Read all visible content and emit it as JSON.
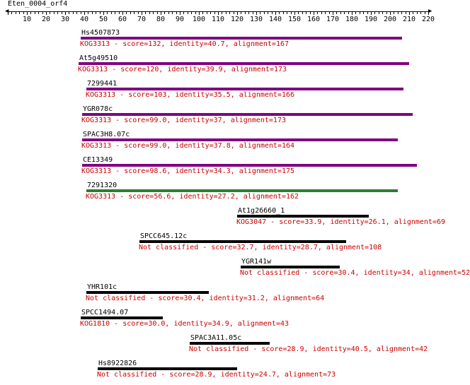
{
  "header": {
    "title": "Eten_0004_orf4"
  },
  "ruler": {
    "min": 0,
    "max": 220,
    "minor_step": 2,
    "labels": [
      10,
      20,
      30,
      40,
      50,
      60,
      70,
      80,
      90,
      100,
      110,
      120,
      130,
      140,
      150,
      160,
      170,
      180,
      190,
      200,
      210,
      220
    ]
  },
  "colors": {
    "kog_bar_purple": "#800080",
    "kog_bar_green": "#2e7d32",
    "other_bar": "#000000",
    "description_text": "#cc0000"
  },
  "hits": [
    {
      "name": "Hs4507873",
      "description": "KOG3313 - score=132, identity=40.7, alignment=167",
      "start": 38,
      "end": 206,
      "color": "#800080"
    },
    {
      "name": "At5g49510",
      "description": "KOG3313 - score=120, identity=39.9, alignment=173",
      "start": 37,
      "end": 210,
      "color": "#800080"
    },
    {
      "name": "7299441",
      "description": "KOG3313 - score=103, identity=35.5, alignment=166",
      "start": 41,
      "end": 207,
      "color": "#800080"
    },
    {
      "name": "YGR078c",
      "description": "KOG3313 - score=99.0, identity=37, alignment=173",
      "start": 39,
      "end": 212,
      "color": "#800080"
    },
    {
      "name": "SPAC3H8.07c",
      "description": "KOG3313 - score=99.0, identity=37.8, alignment=164",
      "start": 39,
      "end": 204,
      "color": "#800080"
    },
    {
      "name": "CE13349",
      "description": "KOG3313 - score=98.6, identity=34.3, alignment=175",
      "start": 39,
      "end": 214,
      "color": "#800080"
    },
    {
      "name": "7291320",
      "description": "KOG3313 - score=56.6, identity=27.2, alignment=162",
      "start": 41,
      "end": 204,
      "color": "#2e7d32"
    },
    {
      "name": "At1g26660_1",
      "description": "KOG3047 - score=33.9, identity=26.1, alignment=69",
      "start": 120,
      "end": 189,
      "color": "#000000"
    },
    {
      "name": "SPCC645.12c",
      "description": "Not classified - score=32.7, identity=28.7, alignment=108",
      "start": 69,
      "end": 177,
      "color": "#000000"
    },
    {
      "name": "YGR141w",
      "description": "Not classified - score=30.4, identity=34, alignment=52",
      "start": 122,
      "end": 174,
      "color": "#000000"
    },
    {
      "name": "YHR101c",
      "description": "Not classified - score=30.4, identity=31.2, alignment=64",
      "start": 41,
      "end": 105,
      "color": "#000000"
    },
    {
      "name": "SPCC1494.07",
      "description": "KOG1810 - score=30.0, identity=34.9, alignment=43",
      "start": 38,
      "end": 81,
      "color": "#000000"
    },
    {
      "name": "SPAC3A11.05c",
      "description": "Not classified - score=28.9, identity=40.5, alignment=42",
      "start": 95,
      "end": 137,
      "color": "#000000"
    },
    {
      "name": "Hs8922826",
      "description": "Not classified - score=28.9, identity=24.7, alignment=73",
      "start": 47,
      "end": 120,
      "color": "#000000"
    }
  ]
}
